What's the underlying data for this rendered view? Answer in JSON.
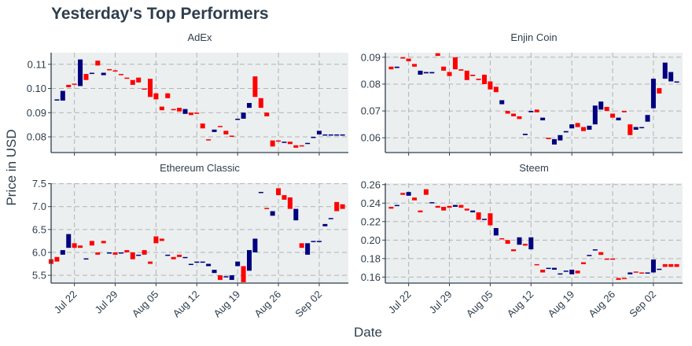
{
  "chart_title": "Yesterday's Top Performers",
  "x_axis_label": "Date",
  "y_axis_label": "Price in USD",
  "x_tick_labels": [
    "Jul 22",
    "Jul 29",
    "Aug 05",
    "Aug 12",
    "Aug 19",
    "Aug 26",
    "Sep 02"
  ],
  "colors": {
    "up": "#00007f",
    "down": "#ff0000",
    "panel_bg": "#ebeff0",
    "grid": "#b3b3b3",
    "axis": "#2f3e4c",
    "text": "#2f3e4c"
  },
  "chart_data": {
    "type": "candlestick",
    "x_axis": {
      "label": "Date",
      "start": "2019-07-18",
      "end": "2019-09-07",
      "ticks": [
        "2019-07-22",
        "2019-07-29",
        "2019-08-05",
        "2019-08-12",
        "2019-08-19",
        "2019-08-26",
        "2019-09-02"
      ],
      "tick_labels": [
        "Jul 22",
        "Jul 29",
        "Aug 05",
        "Aug 12",
        "Aug 19",
        "Aug 26",
        "Sep 02"
      ]
    },
    "y_axis": {
      "label": "Price in USD"
    },
    "grid": true,
    "panels": [
      {
        "name": "AdEx",
        "ylim": [
          0.0735,
          0.1148
        ],
        "yticks": [
          0.08,
          0.09,
          0.1,
          0.11
        ],
        "ytick_labels": [
          "0.08",
          "0.09",
          "0.10",
          "0.11"
        ],
        "dates": [
          "2019-07-19",
          "2019-07-20",
          "2019-07-21",
          "2019-07-22",
          "2019-07-23",
          "2019-07-24",
          "2019-07-25",
          "2019-07-26",
          "2019-07-27",
          "2019-07-28",
          "2019-07-29",
          "2019-07-30",
          "2019-07-31",
          "2019-08-01",
          "2019-08-02",
          "2019-08-03",
          "2019-08-04",
          "2019-08-05",
          "2019-08-06",
          "2019-08-07",
          "2019-08-08",
          "2019-08-09",
          "2019-08-10",
          "2019-08-11",
          "2019-08-12",
          "2019-08-13",
          "2019-08-14",
          "2019-08-15",
          "2019-08-16",
          "2019-08-17",
          "2019-08-18",
          "2019-08-19",
          "2019-08-20",
          "2019-08-21",
          "2019-08-22",
          "2019-08-23",
          "2019-08-24",
          "2019-08-25",
          "2019-08-26",
          "2019-08-27",
          "2019-08-28",
          "2019-08-29",
          "2019-08-30",
          "2019-08-31",
          "2019-09-01",
          "2019-09-02",
          "2019-09-03",
          "2019-09-04",
          "2019-09-05",
          "2019-09-06"
        ],
        "open": [
          0.095,
          0.095,
          0.1015,
          0.102,
          0.101,
          0.106,
          0.106,
          0.1115,
          0.1055,
          0.108,
          0.1075,
          0.106,
          0.1045,
          0.1035,
          0.1045,
          0.1,
          0.104,
          0.098,
          0.0925,
          0.098,
          0.0915,
          0.092,
          0.0895,
          0.09,
          0.09,
          0.0855,
          0.079,
          0.082,
          0.0845,
          0.0825,
          0.0805,
          0.087,
          0.0875,
          0.092,
          0.105,
          0.096,
          0.09,
          0.0785,
          0.0785,
          0.0775,
          0.078,
          0.0765,
          0.0765,
          0.0775,
          0.08,
          0.081,
          0.081,
          0.081,
          0.081,
          0.081
        ],
        "close": [
          0.0955,
          0.099,
          0.1005,
          0.1015,
          0.112,
          0.1035,
          0.1065,
          0.1095,
          0.1065,
          0.1075,
          0.107,
          0.1055,
          0.104,
          0.1015,
          0.1025,
          0.0995,
          0.0965,
          0.0955,
          0.091,
          0.096,
          0.091,
          0.0905,
          0.0915,
          0.089,
          0.0895,
          0.0835,
          0.0785,
          0.083,
          0.084,
          0.081,
          0.08,
          0.0875,
          0.09,
          0.094,
          0.0965,
          0.092,
          0.0885,
          0.076,
          0.078,
          0.078,
          0.077,
          0.0755,
          0.076,
          0.0775,
          0.08,
          0.0825,
          0.081,
          0.081,
          0.081,
          0.081
        ]
      },
      {
        "name": "Enjin Coin",
        "ylim": [
          0.0545,
          0.0917
        ],
        "yticks": [
          0.06,
          0.07,
          0.08,
          0.09
        ],
        "ytick_labels": [
          "0.06",
          "0.07",
          "0.08",
          "0.09"
        ],
        "dates": [
          "2019-07-19",
          "2019-07-20",
          "2019-07-21",
          "2019-07-22",
          "2019-07-23",
          "2019-07-24",
          "2019-07-25",
          "2019-07-26",
          "2019-07-27",
          "2019-07-28",
          "2019-07-29",
          "2019-07-30",
          "2019-07-31",
          "2019-08-01",
          "2019-08-02",
          "2019-08-03",
          "2019-08-04",
          "2019-08-05",
          "2019-08-06",
          "2019-08-07",
          "2019-08-08",
          "2019-08-09",
          "2019-08-10",
          "2019-08-11",
          "2019-08-12",
          "2019-08-13",
          "2019-08-14",
          "2019-08-15",
          "2019-08-16",
          "2019-08-17",
          "2019-08-18",
          "2019-08-19",
          "2019-08-20",
          "2019-08-21",
          "2019-08-22",
          "2019-08-23",
          "2019-08-24",
          "2019-08-25",
          "2019-08-26",
          "2019-08-27",
          "2019-08-28",
          "2019-08-29",
          "2019-08-30",
          "2019-08-31",
          "2019-09-01",
          "2019-09-02",
          "2019-09-03",
          "2019-09-04",
          "2019-09-05",
          "2019-09-06"
        ],
        "open": [
          0.0865,
          0.086,
          0.09,
          0.0895,
          0.0875,
          0.0835,
          0.084,
          0.084,
          0.0915,
          0.0865,
          0.0845,
          0.09,
          0.0855,
          0.085,
          0.0835,
          0.082,
          0.0835,
          0.081,
          0.079,
          0.0725,
          0.07,
          0.069,
          0.068,
          0.061,
          0.0695,
          0.0705,
          0.0665,
          0.06,
          0.0575,
          0.059,
          0.062,
          0.0635,
          0.0655,
          0.064,
          0.063,
          0.065,
          0.0705,
          0.0715,
          0.069,
          0.0665,
          0.07,
          0.065,
          0.063,
          0.064,
          0.066,
          0.071,
          0.0785,
          0.082,
          0.081,
          0.081
        ],
        "close": [
          0.0855,
          0.0865,
          0.0895,
          0.0885,
          0.0865,
          0.085,
          0.0845,
          0.0845,
          0.0905,
          0.085,
          0.083,
          0.0855,
          0.085,
          0.0815,
          0.083,
          0.0815,
          0.08,
          0.078,
          0.077,
          0.074,
          0.069,
          0.068,
          0.067,
          0.0615,
          0.07,
          0.0695,
          0.0675,
          0.0595,
          0.0595,
          0.061,
          0.0625,
          0.065,
          0.064,
          0.0625,
          0.0645,
          0.072,
          0.0735,
          0.07,
          0.0675,
          0.0675,
          0.0695,
          0.061,
          0.064,
          0.064,
          0.0685,
          0.082,
          0.0765,
          0.088,
          0.0845,
          0.081
        ]
      },
      {
        "name": "Ethereum Classic",
        "ylim": [
          5.33,
          7.51
        ],
        "yticks": [
          5.5,
          6.0,
          6.5,
          7.0,
          7.5
        ],
        "ytick_labels": [
          "5.5",
          "6.0",
          "6.5",
          "7.0",
          "7.5"
        ],
        "dates": [
          "2019-07-18",
          "2019-07-19",
          "2019-07-20",
          "2019-07-21",
          "2019-07-22",
          "2019-07-23",
          "2019-07-24",
          "2019-07-25",
          "2019-07-26",
          "2019-07-27",
          "2019-07-28",
          "2019-07-29",
          "2019-07-30",
          "2019-07-31",
          "2019-08-01",
          "2019-08-02",
          "2019-08-03",
          "2019-08-04",
          "2019-08-05",
          "2019-08-06",
          "2019-08-07",
          "2019-08-08",
          "2019-08-09",
          "2019-08-10",
          "2019-08-11",
          "2019-08-12",
          "2019-08-13",
          "2019-08-14",
          "2019-08-15",
          "2019-08-16",
          "2019-08-17",
          "2019-08-18",
          "2019-08-19",
          "2019-08-20",
          "2019-08-21",
          "2019-08-22",
          "2019-08-23",
          "2019-08-24",
          "2019-08-25",
          "2019-08-26",
          "2019-08-27",
          "2019-08-28",
          "2019-08-29",
          "2019-08-30",
          "2019-08-31",
          "2019-09-01",
          "2019-09-02",
          "2019-09-03",
          "2019-09-04",
          "2019-09-05",
          "2019-09-06"
        ],
        "open": [
          5.85,
          5.9,
          5.95,
          6.1,
          6.2,
          6.15,
          5.87,
          6.25,
          6.0,
          6.25,
          6.0,
          6.0,
          6.0,
          6.05,
          6.0,
          5.95,
          6.05,
          5.8,
          6.35,
          6.3,
          5.95,
          5.9,
          5.95,
          5.9,
          5.75,
          5.8,
          5.8,
          5.7,
          5.55,
          5.5,
          5.48,
          5.4,
          5.7,
          5.7,
          5.6,
          6.0,
          7.32,
          6.97,
          6.8,
          7.4,
          7.25,
          7.2,
          6.7,
          6.2,
          5.95,
          6.25,
          6.25,
          6.57,
          6.75,
          7.1,
          7.05
        ],
        "close": [
          5.75,
          5.8,
          6.05,
          6.4,
          6.1,
          6.1,
          5.87,
          6.15,
          5.95,
          6.2,
          6.0,
          5.95,
          6.0,
          6.0,
          5.85,
          5.95,
          5.95,
          5.75,
          6.2,
          6.25,
          5.95,
          5.85,
          5.9,
          5.9,
          5.75,
          5.8,
          5.8,
          5.75,
          5.62,
          5.4,
          5.48,
          5.5,
          5.8,
          5.35,
          6.05,
          6.3,
          7.32,
          6.95,
          6.9,
          7.25,
          7.15,
          6.95,
          6.95,
          6.1,
          6.2,
          6.25,
          6.25,
          6.62,
          6.75,
          6.9,
          6.95
        ]
      },
      {
        "name": "Steem",
        "ylim": [
          0.1535,
          0.2615
        ],
        "yticks": [
          0.16,
          0.18,
          0.2,
          0.22,
          0.24,
          0.26
        ],
        "ytick_labels": [
          "0.16",
          "0.18",
          "0.20",
          "0.22",
          "0.24",
          "0.26"
        ],
        "dates": [
          "2019-07-19",
          "2019-07-20",
          "2019-07-21",
          "2019-07-22",
          "2019-07-23",
          "2019-07-24",
          "2019-07-25",
          "2019-07-26",
          "2019-07-27",
          "2019-07-28",
          "2019-07-29",
          "2019-07-30",
          "2019-07-31",
          "2019-08-01",
          "2019-08-02",
          "2019-08-03",
          "2019-08-04",
          "2019-08-05",
          "2019-08-06",
          "2019-08-07",
          "2019-08-08",
          "2019-08-09",
          "2019-08-10",
          "2019-08-11",
          "2019-08-12",
          "2019-08-13",
          "2019-08-14",
          "2019-08-15",
          "2019-08-16",
          "2019-08-17",
          "2019-08-18",
          "2019-08-19",
          "2019-08-20",
          "2019-08-21",
          "2019-08-22",
          "2019-08-23",
          "2019-08-24",
          "2019-08-25",
          "2019-08-26",
          "2019-08-27",
          "2019-08-28",
          "2019-08-29",
          "2019-08-30",
          "2019-08-31",
          "2019-09-01",
          "2019-09-02",
          "2019-09-03",
          "2019-09-04",
          "2019-09-05",
          "2019-09-06"
        ],
        "open": [
          0.236,
          0.237,
          0.251,
          0.248,
          0.246,
          0.232,
          0.255,
          0.24,
          0.237,
          0.236,
          0.237,
          0.236,
          0.238,
          0.234,
          0.23,
          0.23,
          0.222,
          0.229,
          0.205,
          0.202,
          0.2,
          0.19,
          0.195,
          0.196,
          0.19,
          0.174,
          0.168,
          0.17,
          0.168,
          0.163,
          0.167,
          0.163,
          0.167,
          0.176,
          0.183,
          0.189,
          0.187,
          0.18,
          0.18,
          0.159,
          0.159,
          0.163,
          0.166,
          0.165,
          0.165,
          0.165,
          0.169,
          0.174,
          0.174,
          0.174
        ],
        "close": [
          0.234,
          0.238,
          0.249,
          0.252,
          0.243,
          0.23,
          0.249,
          0.241,
          0.235,
          0.232,
          0.235,
          0.238,
          0.235,
          0.232,
          0.232,
          0.222,
          0.223,
          0.216,
          0.213,
          0.201,
          0.196,
          0.188,
          0.203,
          0.194,
          0.203,
          0.173,
          0.165,
          0.17,
          0.17,
          0.164,
          0.167,
          0.168,
          0.164,
          0.174,
          0.184,
          0.19,
          0.184,
          0.179,
          0.179,
          0.157,
          0.158,
          0.165,
          0.165,
          0.164,
          0.165,
          0.179,
          0.169,
          0.171,
          0.171,
          0.171
        ]
      }
    ]
  }
}
